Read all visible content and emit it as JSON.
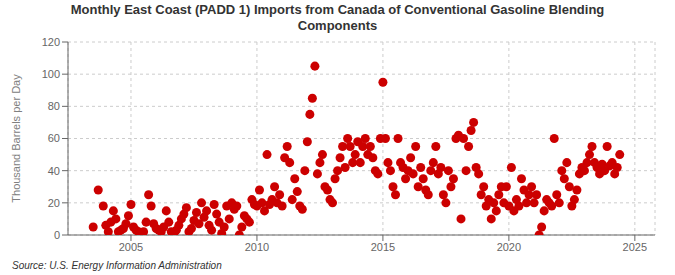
{
  "chart_data": {
    "type": "scatter",
    "title": "Monthly East Coast (PADD 1) Imports from Canada of Conventional Gasoline Blending\nComponents",
    "ylabel": "Thousand Barrels per Day",
    "source": "Source: U.S. Energy Information Administration",
    "color": "#cc0000",
    "xlim": [
      2002.5,
      2025.8
    ],
    "ylim": [
      0,
      120
    ],
    "xticks": [
      2005,
      2010,
      2015,
      2020,
      2025
    ],
    "yticks": [
      0,
      20,
      40,
      60,
      80,
      100,
      120
    ],
    "grid": true,
    "x": [
      2003.5,
      2003.7,
      2003.9,
      2004.0,
      2004.1,
      2004.2,
      2004.3,
      2004.4,
      2004.5,
      2004.6,
      2004.7,
      2004.8,
      2004.9,
      2005.0,
      2005.1,
      2005.2,
      2005.3,
      2005.4,
      2005.5,
      2005.6,
      2005.7,
      2005.8,
      2005.9,
      2006.0,
      2006.1,
      2006.2,
      2006.3,
      2006.4,
      2006.5,
      2006.6,
      2006.7,
      2006.8,
      2006.9,
      2007.0,
      2007.1,
      2007.2,
      2007.3,
      2007.4,
      2007.5,
      2007.6,
      2007.7,
      2007.8,
      2007.9,
      2008.0,
      2008.1,
      2008.2,
      2008.3,
      2008.4,
      2008.5,
      2008.6,
      2008.7,
      2008.8,
      2008.9,
      2009.0,
      2009.1,
      2009.2,
      2009.3,
      2009.4,
      2009.5,
      2009.6,
      2009.7,
      2009.8,
      2009.9,
      2010.0,
      2010.1,
      2010.2,
      2010.3,
      2010.4,
      2010.5,
      2010.6,
      2010.7,
      2010.8,
      2010.9,
      2011.0,
      2011.1,
      2011.2,
      2011.3,
      2011.4,
      2011.5,
      2011.6,
      2011.7,
      2011.8,
      2011.9,
      2012.0,
      2012.1,
      2012.2,
      2012.3,
      2012.4,
      2012.5,
      2012.6,
      2012.7,
      2012.8,
      2012.9,
      2013.0,
      2013.1,
      2013.2,
      2013.3,
      2013.4,
      2013.5,
      2013.6,
      2013.7,
      2013.8,
      2013.9,
      2014.0,
      2014.1,
      2014.2,
      2014.3,
      2014.4,
      2014.5,
      2014.6,
      2014.7,
      2014.8,
      2014.9,
      2015.0,
      2015.1,
      2015.2,
      2015.3,
      2015.4,
      2015.5,
      2015.6,
      2015.7,
      2015.8,
      2015.9,
      2016.0,
      2016.1,
      2016.2,
      2016.3,
      2016.4,
      2016.5,
      2016.6,
      2016.7,
      2016.8,
      2016.9,
      2017.0,
      2017.1,
      2017.2,
      2017.3,
      2017.4,
      2017.5,
      2017.6,
      2017.7,
      2017.8,
      2017.9,
      2018.0,
      2018.1,
      2018.2,
      2018.3,
      2018.4,
      2018.5,
      2018.6,
      2018.7,
      2018.8,
      2018.9,
      2019.0,
      2019.1,
      2019.2,
      2019.3,
      2019.4,
      2019.5,
      2019.6,
      2019.7,
      2019.8,
      2019.9,
      2020.0,
      2020.1,
      2020.2,
      2020.3,
      2020.4,
      2020.5,
      2020.6,
      2020.7,
      2020.8,
      2020.9,
      2021.0,
      2021.1,
      2021.2,
      2021.3,
      2021.4,
      2021.5,
      2021.6,
      2021.7,
      2021.8,
      2021.9,
      2022.0,
      2022.1,
      2022.2,
      2022.3,
      2022.4,
      2022.5,
      2022.6,
      2022.7,
      2022.8,
      2022.9,
      2023.0,
      2023.1,
      2023.2,
      2023.3,
      2023.4,
      2023.5,
      2023.6,
      2023.7,
      2023.8,
      2023.9,
      2024.0,
      2024.1,
      2024.2,
      2024.3,
      2024.4
    ],
    "values": [
      5,
      28,
      18,
      6,
      2,
      8,
      15,
      10,
      2,
      3,
      4,
      7,
      12,
      19,
      5,
      3,
      2,
      1,
      2,
      8,
      25,
      18,
      7,
      4,
      3,
      2,
      5,
      15,
      8,
      2,
      1,
      3,
      6,
      10,
      13,
      17,
      2,
      4,
      9,
      14,
      7,
      20,
      11,
      15,
      6,
      3,
      19,
      13,
      8,
      1,
      5,
      18,
      10,
      20,
      16,
      18,
      0,
      5,
      12,
      10,
      8,
      22,
      19,
      18,
      28,
      20,
      15,
      50,
      19,
      22,
      30,
      20,
      25,
      18,
      48,
      55,
      45,
      22,
      35,
      27,
      18,
      16,
      40,
      58,
      75,
      85,
      105,
      38,
      45,
      50,
      30,
      28,
      22,
      20,
      35,
      40,
      48,
      55,
      42,
      60,
      55,
      45,
      50,
      58,
      45,
      55,
      60,
      50,
      55,
      48,
      40,
      38,
      60,
      95,
      60,
      45,
      40,
      30,
      25,
      60,
      45,
      42,
      35,
      40,
      48,
      38,
      55,
      30,
      42,
      35,
      28,
      25,
      40,
      45,
      55,
      38,
      42,
      25,
      20,
      40,
      30,
      35,
      60,
      62,
      10,
      60,
      40,
      55,
      65,
      70,
      42,
      38,
      25,
      30,
      18,
      22,
      10,
      20,
      15,
      25,
      30,
      20,
      30,
      18,
      42,
      15,
      22,
      18,
      35,
      28,
      20,
      25,
      30,
      20,
      25,
      0,
      5,
      15,
      22,
      20,
      18,
      60,
      25,
      20,
      40,
      35,
      45,
      30,
      18,
      22,
      28,
      38,
      42,
      40,
      45,
      50,
      55,
      45,
      42,
      38,
      44,
      40,
      55,
      43,
      45,
      38,
      42,
      50
    ]
  }
}
